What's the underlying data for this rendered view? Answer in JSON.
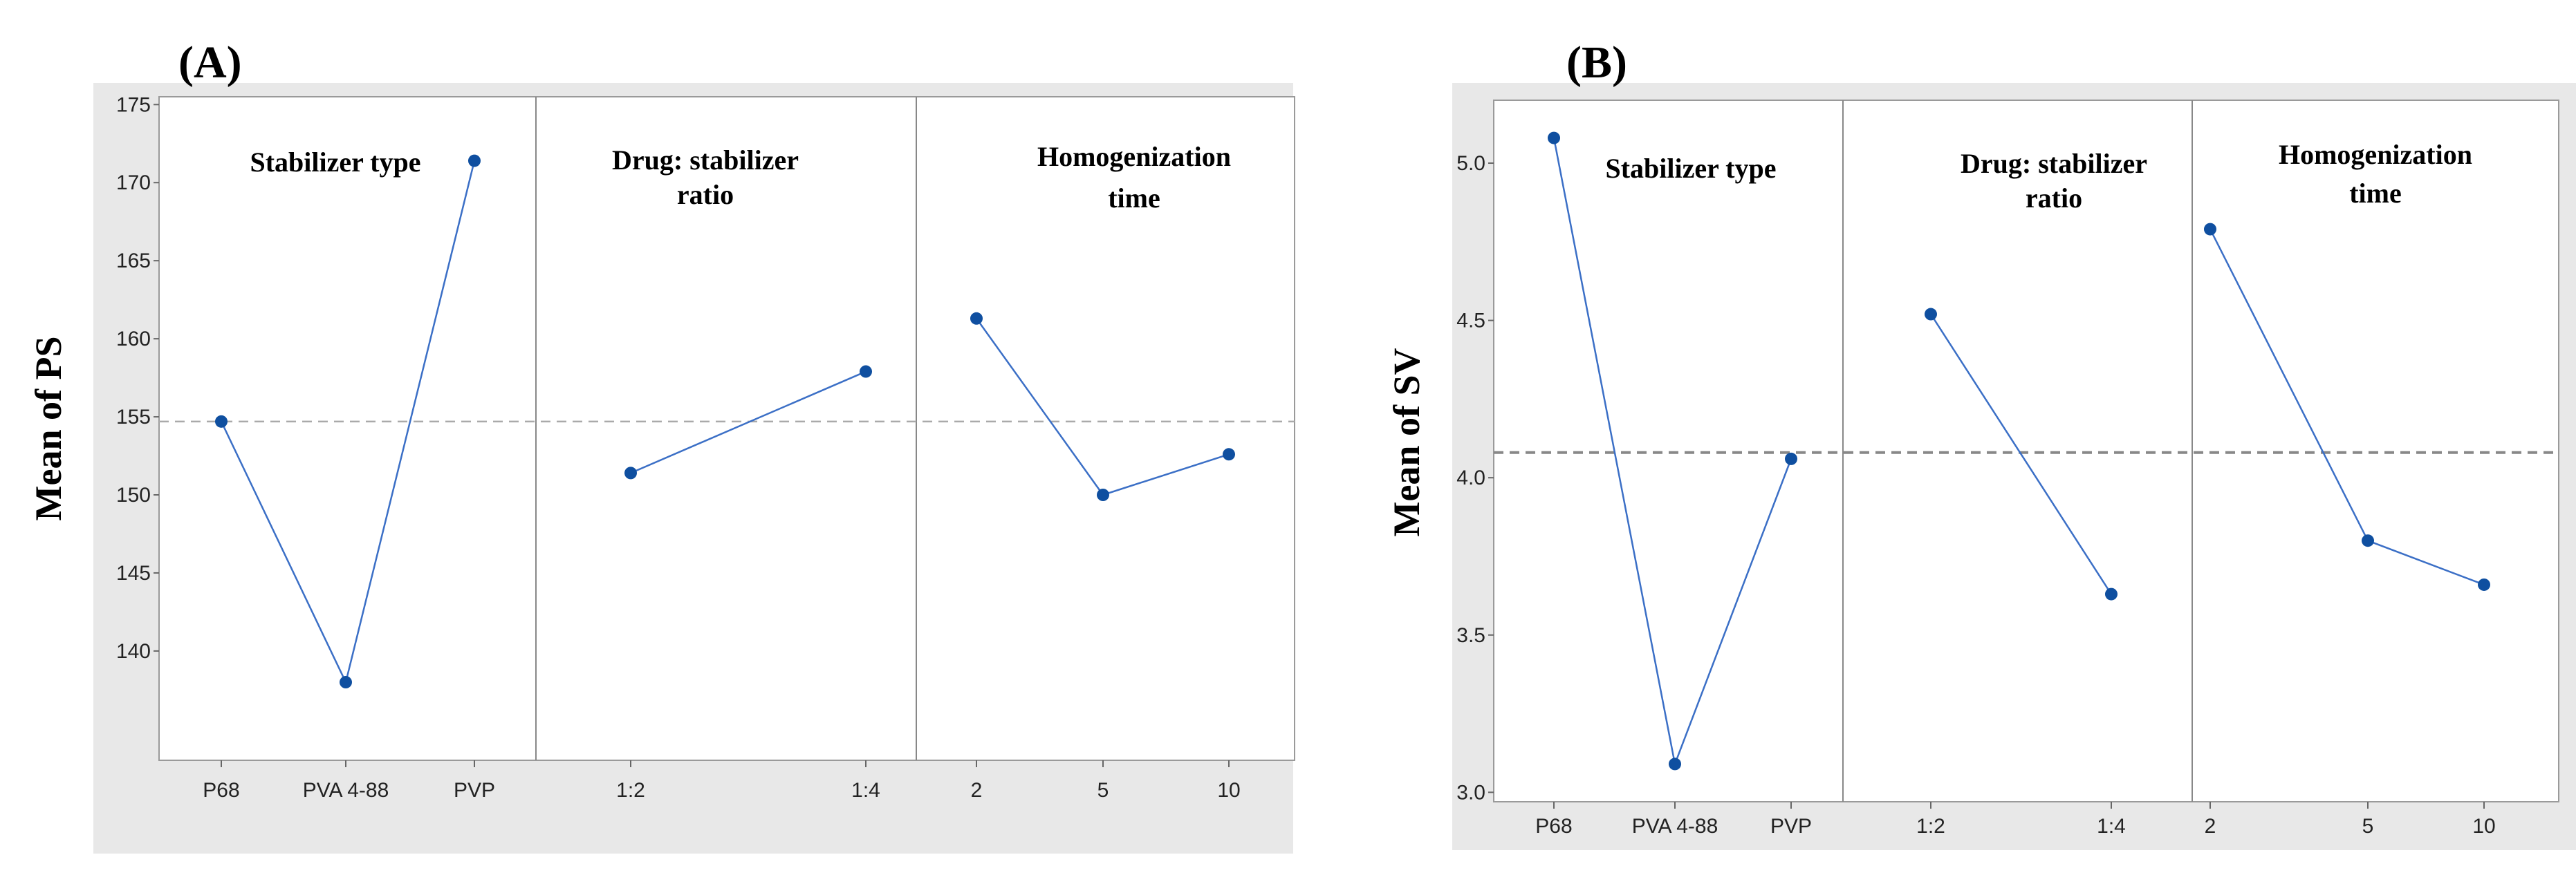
{
  "chart_data": [
    {
      "type": "line",
      "chart_kind": "main effects plot",
      "panel_label": "(A)",
      "ylabel": "Mean of PS",
      "ylim": [
        133,
        175.5
      ],
      "yticks": [
        140,
        145,
        150,
        155,
        160,
        165,
        170,
        175
      ],
      "grand_mean": 154.7,
      "colors": {
        "line": "#3b6fc6",
        "marker": "#0f4fa0",
        "mean": "#aaaaaa",
        "background": "#e8e8e8",
        "divider": "#888888"
      },
      "facets": [
        {
          "title": [
            "Stabilizer type"
          ],
          "categories": [
            "P68",
            "PVA 4-88",
            "PVP"
          ],
          "values": [
            154.7,
            138.0,
            171.4
          ]
        },
        {
          "title": [
            "Drug: stabilizer",
            "ratio"
          ],
          "categories": [
            "1:2",
            "1:4"
          ],
          "values": [
            151.4,
            157.9
          ]
        },
        {
          "title": [
            "Homogenization",
            "time"
          ],
          "categories": [
            "2",
            "5",
            "10"
          ],
          "values": [
            161.3,
            150.0,
            152.6
          ]
        }
      ]
    },
    {
      "type": "line",
      "chart_kind": "main effects plot",
      "panel_label": "(B)",
      "ylabel": "Mean of SV",
      "ylim": [
        2.97,
        5.2
      ],
      "yticks": [
        3.0,
        3.5,
        4.0,
        4.5,
        5.0
      ],
      "grand_mean": 4.08,
      "colors": {
        "line": "#3b6fc6",
        "marker": "#0f4fa0",
        "mean": "#888888",
        "background": "#e8e8e8",
        "divider": "#888888"
      },
      "facets": [
        {
          "title": [
            "Stabilizer type"
          ],
          "categories": [
            "P68",
            "PVA 4-88",
            "PVP"
          ],
          "values": [
            5.08,
            3.09,
            4.06
          ]
        },
        {
          "title": [
            "Drug: stabilizer",
            "ratio"
          ],
          "categories": [
            "1:2",
            "1:4"
          ],
          "values": [
            4.52,
            3.63
          ]
        },
        {
          "title": [
            "Homogenization",
            "time"
          ],
          "categories": [
            "2",
            "5",
            "10"
          ],
          "values": [
            4.79,
            3.8,
            3.66
          ]
        }
      ]
    }
  ]
}
